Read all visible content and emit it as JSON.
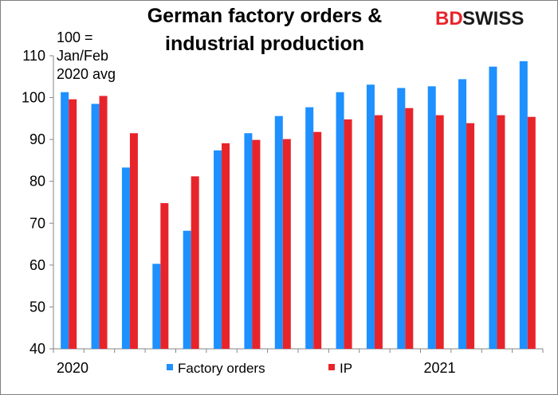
{
  "chart_data": {
    "type": "bar",
    "title_lines": [
      "German factory orders &",
      "industrial production"
    ],
    "note_lines": [
      "100 =",
      "Jan/Feb",
      "2020 avg"
    ],
    "categories": [
      "2020-01",
      "2020-02",
      "2020-03",
      "2020-04",
      "2020-05",
      "2020-06",
      "2020-07",
      "2020-08",
      "2020-09",
      "2020-10",
      "2020-11",
      "2020-12",
      "2021-01",
      "2021-02",
      "2021-03",
      "2021-04"
    ],
    "x_tick_labels": [
      {
        "index": 0,
        "label": "2020"
      },
      {
        "index": 12,
        "label": "2021"
      }
    ],
    "series": [
      {
        "name": "Factory orders",
        "color": "#1e90ff",
        "values": [
          101.3,
          98.5,
          83.3,
          60.3,
          68.2,
          87.4,
          91.5,
          95.6,
          97.7,
          101.3,
          103.1,
          102.3,
          102.7,
          104.4,
          107.4,
          108.7
        ]
      },
      {
        "name": "IP",
        "color": "#e8242b",
        "values": [
          99.6,
          100.4,
          91.5,
          74.8,
          81.2,
          89.1,
          89.9,
          90.1,
          91.8,
          94.8,
          95.8,
          97.5,
          95.8,
          93.9,
          95.8,
          95.4
        ]
      }
    ],
    "ylim": [
      40,
      110
    ],
    "yticks": [
      40,
      50,
      60,
      70,
      80,
      90,
      100,
      110
    ],
    "grid": false,
    "legend_position": "bottom"
  },
  "logo": {
    "part1": "BD",
    "part2": "SWISS"
  }
}
